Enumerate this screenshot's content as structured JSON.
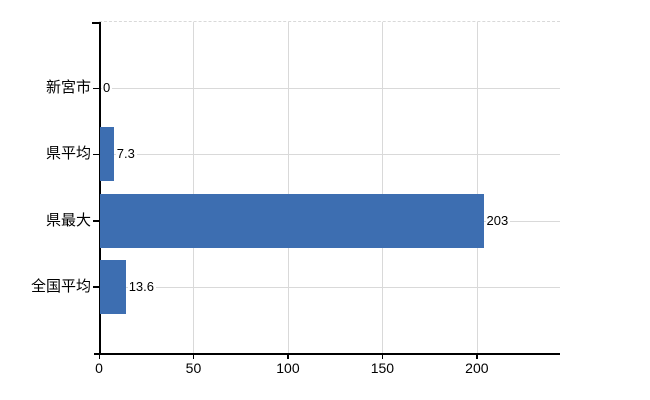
{
  "chart_data": {
    "type": "bar",
    "orientation": "horizontal",
    "title": "",
    "xlabel": "",
    "ylabel": "",
    "categories": [
      "新宮市",
      "県平均",
      "県最大",
      "全国平均"
    ],
    "values": [
      0,
      7.3,
      203,
      13.6
    ],
    "value_labels": [
      "0",
      "7.3",
      "203",
      "13.6"
    ],
    "x_ticks": [
      0,
      50,
      100,
      150,
      200
    ],
    "xlim": [
      0,
      244
    ],
    "grid": true,
    "legend": false,
    "colors": {
      "bar": "#3d6eb1",
      "gridline": "#d9d9d9",
      "axis": "#000000",
      "text": "#000000",
      "background": "#ffffff"
    }
  }
}
